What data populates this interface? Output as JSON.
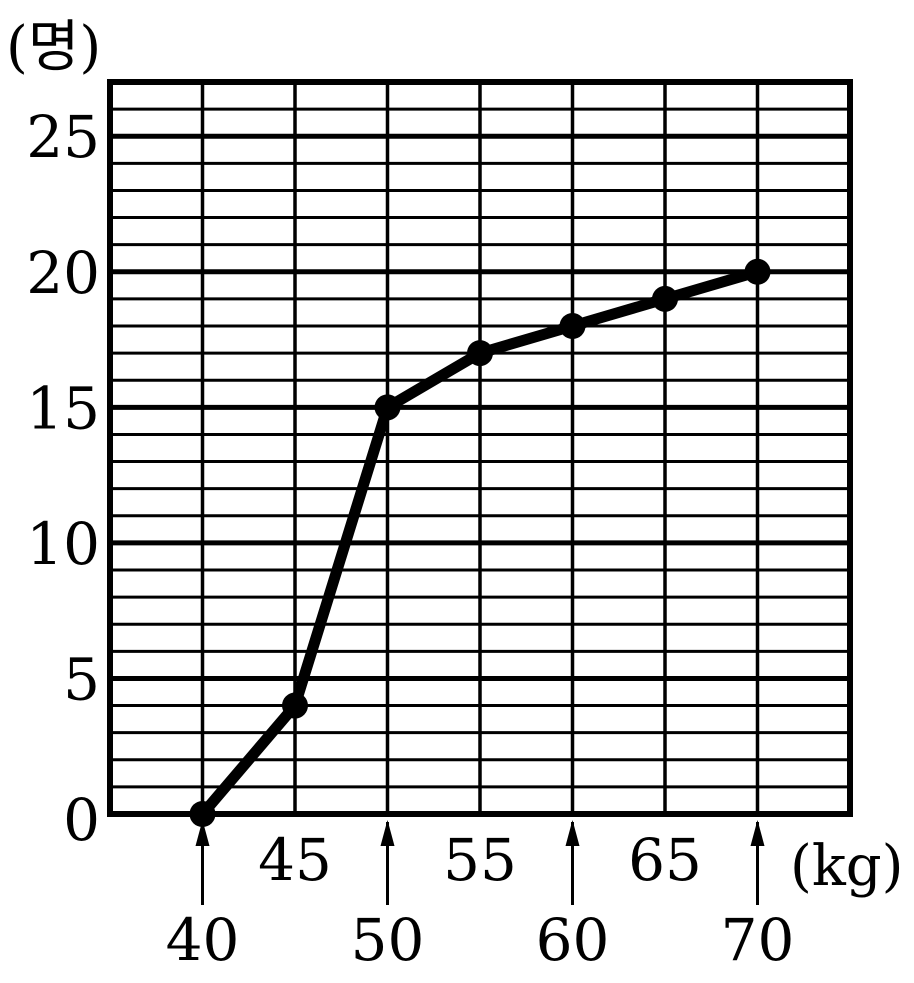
{
  "chart_data": {
    "type": "line",
    "y_unit": "(명)",
    "x_unit": "(kg)",
    "x": [
      40,
      45,
      50,
      55,
      60,
      65,
      70
    ],
    "values": [
      0,
      4,
      15,
      17,
      18,
      19,
      20
    ],
    "xlim": [
      35,
      75
    ],
    "ylim": [
      0,
      27
    ],
    "x_ticks_upper": [
      "45",
      "55",
      "65"
    ],
    "x_ticks_lower": [
      "40",
      "50",
      "60",
      "70"
    ],
    "y_ticks": [
      "0",
      "5",
      "10",
      "15",
      "20",
      "25"
    ],
    "grid": true,
    "arrow_ticks": [
      "40",
      "50",
      "60",
      "70"
    ]
  }
}
